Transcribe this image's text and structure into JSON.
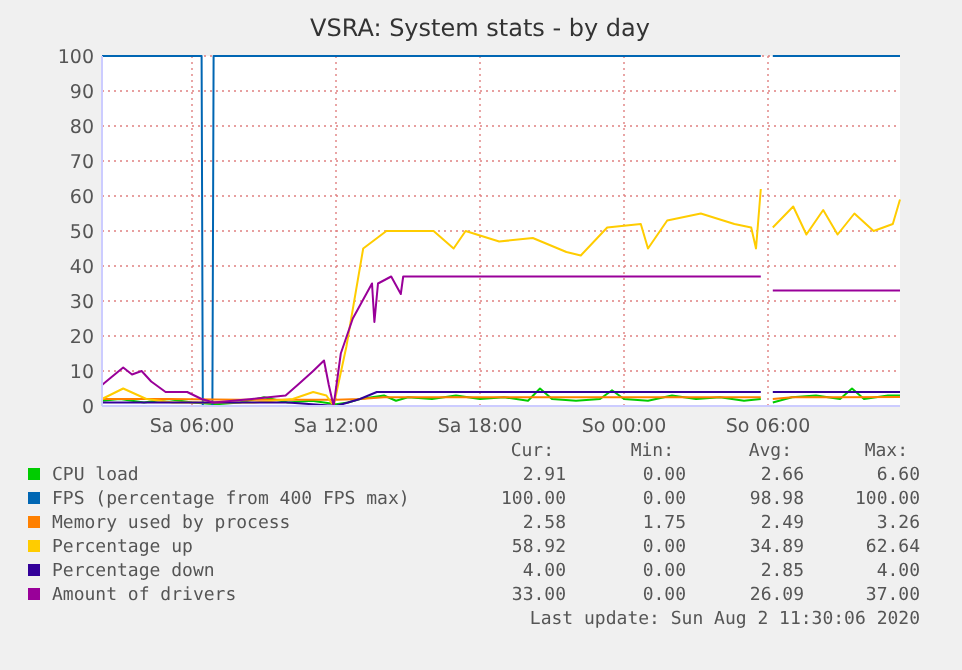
{
  "chart_data": {
    "type": "line",
    "title": "VSRA: System stats - by day",
    "xlim": [
      "2020-08-01T02:15",
      "2020-08-02T11:30"
    ],
    "xticks": [
      {
        "value": "2020-08-01T06:00",
        "label": "Sa 06:00"
      },
      {
        "value": "2020-08-01T12:00",
        "label": "Sa 12:00"
      },
      {
        "value": "2020-08-01T18:00",
        "label": "Sa 18:00"
      },
      {
        "value": "2020-08-02T00:00",
        "label": "So 00:00"
      },
      {
        "value": "2020-08-02T06:00",
        "label": "So 06:00"
      }
    ],
    "ylim": [
      0,
      100
    ],
    "yticks": [
      0,
      10,
      20,
      30,
      40,
      50,
      60,
      70,
      80,
      90,
      100
    ],
    "grid": true,
    "legend": "bottom",
    "marker": "none",
    "line_style": "solid",
    "series": [
      {
        "name": "CPU load",
        "color": "#00cc00",
        "x": [
          "2020-08-01T02:15",
          "2020-08-01T03:00",
          "2020-08-01T04:00",
          "2020-08-01T05:00",
          "2020-08-01T06:00",
          "2020-08-01T07:00",
          "2020-08-01T08:00",
          "2020-08-01T09:00",
          "2020-08-01T10:00",
          "2020-08-01T11:00",
          "2020-08-01T12:00",
          "2020-08-01T12:30",
          "2020-08-01T13:00",
          "2020-08-01T14:00",
          "2020-08-01T14:30",
          "2020-08-01T15:00",
          "2020-08-01T16:00",
          "2020-08-01T17:00",
          "2020-08-01T18:00",
          "2020-08-01T19:00",
          "2020-08-01T20:00",
          "2020-08-01T20:30",
          "2020-08-01T21:00",
          "2020-08-01T22:00",
          "2020-08-01T23:00",
          "2020-08-01T23:30",
          "2020-08-02T00:00",
          "2020-08-02T01:00",
          "2020-08-02T02:00",
          "2020-08-02T03:00",
          "2020-08-02T04:00",
          "2020-08-02T05:00",
          "2020-08-02T05:42",
          "2020-08-02T05:45",
          "2020-08-02T06:12",
          "2020-08-02T07:00",
          "2020-08-02T08:00",
          "2020-08-02T09:00",
          "2020-08-02T09:30",
          "2020-08-02T10:00",
          "2020-08-02T11:00",
          "2020-08-02T11:30"
        ],
        "values": [
          1.5,
          2,
          1,
          2,
          1,
          0.5,
          1,
          2.5,
          1,
          1.5,
          0.5,
          1,
          2,
          3,
          1.5,
          2.5,
          2,
          3,
          2,
          2.5,
          1.5,
          5,
          2,
          1.5,
          2,
          4.5,
          2,
          1.5,
          3,
          2,
          2.5,
          1.5,
          2,
          null,
          1,
          2.5,
          3,
          2,
          5,
          2,
          3,
          3
        ]
      },
      {
        "name": "FPS (percentage from 400 FPS max)",
        "color": "#0066b3",
        "x": [
          "2020-08-01T02:15",
          "2020-08-01T06:24",
          "2020-08-01T06:27",
          "2020-08-01T06:51",
          "2020-08-01T06:54",
          "2020-08-02T05:42",
          "2020-08-02T05:45",
          "2020-08-02T06:12",
          "2020-08-02T11:30"
        ],
        "values": [
          100,
          100,
          0,
          0,
          100,
          100,
          null,
          100,
          100
        ]
      },
      {
        "name": "Memory used by process",
        "color": "#ff8000",
        "x": [
          "2020-08-01T02:15",
          "2020-08-01T05:00",
          "2020-08-01T08:00",
          "2020-08-01T11:00",
          "2020-08-01T12:00",
          "2020-08-01T13:00",
          "2020-08-01T14:00",
          "2020-08-01T16:00",
          "2020-08-01T18:00",
          "2020-08-01T20:00",
          "2020-08-01T22:00",
          "2020-08-02T00:00",
          "2020-08-02T02:00",
          "2020-08-02T04:00",
          "2020-08-02T05:42",
          "2020-08-02T05:45",
          "2020-08-02T06:12",
          "2020-08-02T07:00",
          "2020-08-02T09:00",
          "2020-08-02T11:30"
        ],
        "values": [
          2,
          2,
          1.8,
          1.8,
          1.8,
          2,
          2.5,
          2.5,
          2.5,
          2.5,
          2.5,
          2.5,
          2.5,
          2.5,
          2.5,
          null,
          2,
          2.5,
          2.5,
          2.6
        ]
      },
      {
        "name": "Percentage up",
        "color": "#ffcc00",
        "x": [
          "2020-08-01T02:15",
          "2020-08-01T03:08",
          "2020-08-01T04:06",
          "2020-08-01T05:12",
          "2020-08-01T08:36",
          "2020-08-01T10:12",
          "2020-08-01T11:03",
          "2020-08-01T11:36",
          "2020-08-01T11:54",
          "2020-08-01T12:26",
          "2020-08-01T13:08",
          "2020-08-01T14:06",
          "2020-08-01T16:04",
          "2020-08-01T16:54",
          "2020-08-01T17:24",
          "2020-08-01T18:48",
          "2020-08-01T20:12",
          "2020-08-01T21:36",
          "2020-08-01T22:12",
          "2020-08-01T23:18",
          "2020-08-02T00:42",
          "2020-08-02T01:00",
          "2020-08-02T01:48",
          "2020-08-02T03:12",
          "2020-08-02T04:36",
          "2020-08-02T05:18",
          "2020-08-02T05:30",
          "2020-08-02T05:42",
          "2020-08-02T05:45",
          "2020-08-02T06:12",
          "2020-08-02T07:03",
          "2020-08-02T07:36",
          "2020-08-02T08:18",
          "2020-08-02T08:54",
          "2020-08-02T09:36",
          "2020-08-02T10:24",
          "2020-08-02T11:12",
          "2020-08-02T11:30"
        ],
        "values": [
          2,
          5,
          2,
          1,
          1,
          2,
          4,
          3,
          0,
          17,
          45,
          50,
          50,
          45,
          50,
          47,
          48,
          44,
          43,
          51,
          52,
          45,
          53,
          55,
          52,
          51,
          45,
          62,
          null,
          51,
          57,
          49,
          56,
          49,
          55,
          50,
          52,
          59
        ]
      },
      {
        "name": "Percentage down",
        "color": "#330099",
        "x": [
          "2020-08-01T02:15",
          "2020-08-01T06:00",
          "2020-08-01T08:00",
          "2020-08-01T10:00",
          "2020-08-01T12:00",
          "2020-08-01T13:00",
          "2020-08-01T13:42",
          "2020-08-01T20:00",
          "2020-08-02T01:00",
          "2020-08-02T05:42",
          "2020-08-02T05:45",
          "2020-08-02T06:12",
          "2020-08-02T11:30"
        ],
        "values": [
          1,
          1,
          1,
          1,
          0,
          2,
          4,
          4,
          4,
          4,
          null,
          4,
          4
        ]
      },
      {
        "name": "Amount of drivers",
        "color": "#990099",
        "x": [
          "2020-08-01T02:15",
          "2020-08-01T02:36",
          "2020-08-01T03:08",
          "2020-08-01T03:30",
          "2020-08-01T03:54",
          "2020-08-01T04:18",
          "2020-08-01T04:54",
          "2020-08-01T05:48",
          "2020-08-01T06:24",
          "2020-08-01T06:54",
          "2020-08-01T08:30",
          "2020-08-01T09:54",
          "2020-08-01T10:24",
          "2020-08-01T11:03",
          "2020-08-01T11:30",
          "2020-08-01T11:42",
          "2020-08-01T11:54",
          "2020-08-01T12:12",
          "2020-08-01T12:42",
          "2020-08-01T13:06",
          "2020-08-01T13:30",
          "2020-08-01T13:36",
          "2020-08-01T13:45",
          "2020-08-01T14:18",
          "2020-08-01T14:42",
          "2020-08-01T14:48",
          "2020-08-01T20:00",
          "2020-08-01T22:00",
          "2020-08-02T05:42",
          "2020-08-02T05:45",
          "2020-08-02T06:12",
          "2020-08-02T11:30"
        ],
        "values": [
          6,
          8,
          11,
          9,
          10,
          7,
          4,
          4,
          2,
          1,
          2,
          3,
          6,
          10,
          13,
          6,
          0,
          15,
          25,
          30,
          35,
          24,
          35,
          37,
          32,
          37,
          37,
          37,
          37,
          null,
          33,
          33
        ]
      }
    ],
    "annotations": [
      "Cur:",
      "Min:",
      "Avg:",
      "Max:",
      "2.91",
      "0.00",
      "2.66",
      "6.60",
      "100.00",
      "0.00",
      "98.98",
      "100.00",
      "2.58",
      "1.75",
      "2.49",
      "3.26",
      "58.92",
      "0.00",
      "34.89",
      "62.64",
      "4.00",
      "0.00",
      "2.85",
      "4.00",
      "33.00",
      "0.00",
      "26.09",
      "37.00",
      "Last update: Sun Aug  2 11:30:06 2020"
    ]
  }
}
